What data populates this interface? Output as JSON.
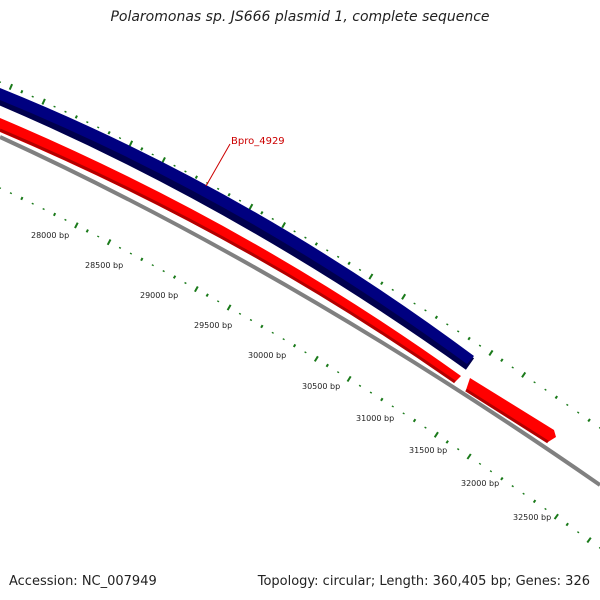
{
  "title": "Polaromonas sp. JS666 plasmid 1, complete sequence",
  "accession": "Accession: NC_007949",
  "summary": "Topology: circular; Length: 360,405 bp; Genes: 326",
  "gene_label": "Bpro_4929",
  "ticks": [
    "28000 bp",
    "28500 bp",
    "29000 bp",
    "29500 bp",
    "30000 bp",
    "30500 bp",
    "31000 bp",
    "31500 bp",
    "32000 bp",
    "32500 bp"
  ],
  "colors": {
    "forward_gene": "#000080",
    "reverse_gene": "#ff0000",
    "backbone": "#808080",
    "gc_skew": "#1a7a1a",
    "label": "#cc0000"
  }
}
